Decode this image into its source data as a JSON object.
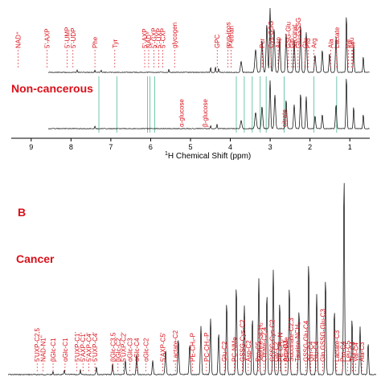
{
  "chart_data": [
    {
      "type": "line",
      "panel": "A",
      "xlabel_main": "H Chemical Shift (ppm)",
      "xlabel_sup": "1",
      "xlim": [
        9.5,
        0.5
      ],
      "x_ticks": [
        9,
        8,
        7,
        6,
        5,
        4,
        3,
        2,
        1
      ],
      "x_tick_labels": [
        "9",
        "8",
        "7",
        "6",
        "5",
        "4",
        "3",
        "2",
        "1"
      ],
      "group_label": "Non-cancerous",
      "green_guides_ppm": [
        7.3,
        6.85,
        6.08,
        6.02,
        5.9,
        3.85,
        3.65,
        3.45,
        3.25,
        3.1,
        2.65,
        1.9,
        1.33
      ],
      "top_annotations": [
        {
          "label": "NAD⁺",
          "ppm": 9.33
        },
        {
          "label": "5'-AXP",
          "ppm": 8.6
        },
        {
          "label": "5'-UMP",
          "ppm": 8.1
        },
        {
          "label": "5'-UDP",
          "ppm": 7.95
        },
        {
          "label": "Phe",
          "ppm": 7.4
        },
        {
          "label": "Tyr",
          "ppm": 6.9
        },
        {
          "label": "5'-AXP",
          "ppm": 6.15
        },
        {
          "label": "NAD⁺",
          "ppm": 6.05
        },
        {
          "label": "5'-GXP",
          "ppm": 5.92
        },
        {
          "label": "5'-UXP",
          "ppm": 5.8
        },
        {
          "label": "5'-CXP",
          "ppm": 5.7
        },
        {
          "label": "glycogen",
          "ppm": 5.4
        },
        {
          "label": "GPC",
          "ppm": 4.33
        },
        {
          "label": "myo-inos",
          "ppm": 4.06
        },
        {
          "label": "P-ethan",
          "ppm": 3.98
        },
        {
          "label": "Pcr",
          "ppm": 3.2
        },
        {
          "label": "Cys-GSG",
          "ppm": 2.98
        },
        {
          "label": "GSG-Glu",
          "ppm": 2.55
        },
        {
          "label": "Glu-GSSG",
          "ppm": 2.3
        },
        {
          "label": "succinat",
          "ppm": 2.4
        },
        {
          "label": "Glu",
          "ppm": 2.12
        },
        {
          "label": "Gln",
          "ppm": 2.46
        },
        {
          "label": "Asp",
          "ppm": 2.8
        },
        {
          "label": "Pro",
          "ppm": 2.05
        },
        {
          "label": "Arg",
          "ppm": 1.9
        },
        {
          "label": "Ala",
          "ppm": 1.48
        },
        {
          "label": "Lactate",
          "ppm": 1.33
        },
        {
          "label": "Val",
          "ppm": 1.04
        },
        {
          "label": "Leu",
          "ppm": 0.96
        },
        {
          "label": "Ile",
          "ppm": 0.93
        }
      ],
      "bottom_annotations": [
        {
          "label": "α-glucose",
          "ppm": 5.23
        },
        {
          "label": "β-glucose",
          "ppm": 4.64
        },
        {
          "label": "citrate",
          "ppm": 2.65
        }
      ]
    },
    {
      "type": "line",
      "panel": "B",
      "panel_label": "B",
      "group_label": "Cancer",
      "annotations": [
        {
          "label": "5'UXP-C2,5",
          "ppm": 8.85
        },
        {
          "label": "NAD-N1''",
          "ppm": 8.7
        },
        {
          "label": "βGlc-C1",
          "ppm": 8.45
        },
        {
          "label": "αGlc-C1",
          "ppm": 8.15
        },
        {
          "label": "5'UXP-C1'",
          "ppm": 7.85
        },
        {
          "label": "5'AXP-C1'",
          "ppm": 7.7
        },
        {
          "label": "5'AXP-C4'",
          "ppm": 7.55
        },
        {
          "label": "5'UXP-C4'",
          "ppm": 7.4
        },
        {
          "label": "βGlc-C3,5",
          "ppm": 6.95
        },
        {
          "label": "βGlc-C2",
          "ppm": 6.82
        },
        {
          "label": "5'UXP-C2'",
          "ppm": 6.68
        },
        {
          "label": "αGlc-C3",
          "ppm": 6.52
        },
        {
          "label": "αGlc-C4",
          "ppm": 6.35
        },
        {
          "label": "αGlc-C2",
          "ppm": 6.12
        },
        {
          "label": "5'AXP-C5'",
          "ppm": 5.7
        },
        {
          "label": "Lactate-C2",
          "ppm": 5.38
        },
        {
          "label": "PE-CH₂-P",
          "ppm": 4.95
        },
        {
          "label": "PC-CH₂-P",
          "ppm": 4.6
        },
        {
          "label": "Glu-C2",
          "ppm": 4.15
        },
        {
          "label": "PC-NMe",
          "ppm": 3.9
        },
        {
          "label": "GSSG-Cys-C2",
          "ppm": 3.7
        },
        {
          "label": "Asp-C2",
          "ppm": 3.55
        },
        {
          "label": "Pro-C5",
          "ppm": 3.3
        },
        {
          "label": "Citrate-C2,4",
          "ppm": 3.15
        },
        {
          "label": "Taurine-SCH₂",
          "ppm": 3.25
        },
        {
          "label": "GSSG-Cys-C2",
          "ppm": 2.95
        },
        {
          "label": "Gly-C2",
          "ppm": 2.85
        },
        {
          "label": "PE-CH₂-N",
          "ppm": 2.75
        },
        {
          "label": "Asp-C3",
          "ppm": 2.62
        },
        {
          "label": "Succinate-C2,3",
          "ppm": 2.48
        },
        {
          "label": "PC-NMe",
          "ppm": 2.6
        },
        {
          "label": "Taurine-NCH₂",
          "ppm": 2.32
        },
        {
          "label": "GSSG-Glu-C4",
          "ppm": 2.1
        },
        {
          "label": "Gln-C4",
          "ppm": 1.98
        },
        {
          "label": "Glu-C4",
          "ppm": 1.85
        },
        {
          "label": "Gln,GSSG-Glu-C3",
          "ppm": 1.68
        },
        {
          "label": "Lactate-C3",
          "ppm": 1.33
        },
        {
          "label": "Pro-C4",
          "ppm": 1.18
        },
        {
          "label": "Leu-C5",
          "ppm": 1.05
        },
        {
          "label": "Thr-C4",
          "ppm": 0.93
        },
        {
          "label": "Val-C4",
          "ppm": 0.85
        },
        {
          "label": "Ala-C3",
          "ppm": 0.7
        }
      ]
    }
  ]
}
